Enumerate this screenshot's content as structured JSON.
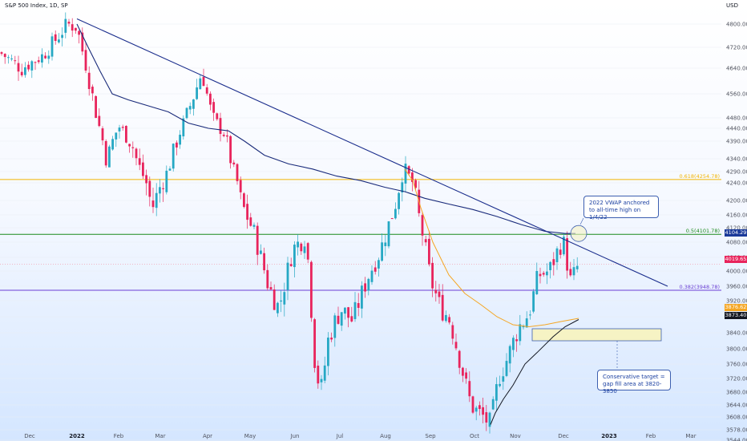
{
  "header": {
    "symbol": "S&P 500 Index, 1D, SP",
    "currency": "USD"
  },
  "chart_data": {
    "type": "candlestick",
    "instrument": "S&P 500 Index",
    "interval": "1D",
    "ylim": [
      3530,
      4830
    ],
    "y_ticks": [
      4800,
      4720,
      4640,
      4560,
      4480,
      4440,
      4390,
      4340,
      4290,
      4240,
      4200,
      4160,
      4120,
      4080,
      4040,
      4000,
      3960,
      3920,
      3880,
      3840,
      3800,
      3760,
      3720,
      3680,
      3644,
      3608,
      3578,
      3544
    ],
    "x_ticks": [
      "Dec",
      "2022",
      "Feb",
      "Mar",
      "Apr",
      "May",
      "Jun",
      "Jul",
      "Aug",
      "Sep",
      "Oct",
      "Nov",
      "Dec",
      "2023",
      "Feb",
      "Mar"
    ],
    "x_ticks_bold": [
      "2022",
      "2023"
    ],
    "key_closes": [
      {
        "date": "Dec 2021",
        "close": 4700
      },
      {
        "date": "2022-01-03",
        "close": 4796
      },
      {
        "date": "Jan 2022 low",
        "close": 4326
      },
      {
        "date": "Feb 2022",
        "close": 4384
      },
      {
        "date": "Mar 2022 low",
        "close": 4170
      },
      {
        "date": "Mar 2022 high",
        "close": 4631
      },
      {
        "date": "Apr 2022",
        "close": 4400
      },
      {
        "date": "May 2022 low",
        "close": 3900
      },
      {
        "date": "Jun 2022 low",
        "close": 3666
      },
      {
        "date": "Jul 2022",
        "close": 3960
      },
      {
        "date": "Aug 2022 high",
        "close": 4305
      },
      {
        "date": "Sep 2022",
        "close": 3790
      },
      {
        "date": "Oct 2022 low",
        "close": 3583
      },
      {
        "date": "Nov 2022",
        "close": 3990
      },
      {
        "date": "Dec 2022 high",
        "close": 4080
      },
      {
        "date": "Dec 2022 last",
        "close": 4019.65
      }
    ],
    "levels": [
      {
        "label": "0.5(4101.78)",
        "value": 4101.78,
        "color": "#1b8a1b"
      },
      {
        "label": "0.382(3948.78)",
        "value": 3948.78,
        "color": "#6a3fd4"
      },
      {
        "label": "0.618(4254.78)",
        "value": 4254.78,
        "color": "#f2b400"
      }
    ],
    "trendline": {
      "start": {
        "date": "2022-01-04",
        "value": 4818
      },
      "end": {
        "date": "Feb 2023",
        "value": 3960
      }
    },
    "vwap_anchored": "2022 VWAP anchored to all-time high on 1/4/22",
    "price_tags": [
      {
        "value": "4104.29",
        "color": "#1a3a9a"
      },
      {
        "value": "4019.65",
        "color": "#e8245c"
      },
      {
        "value": "3876.62",
        "color": "#f5a623"
      },
      {
        "value": "3873.40",
        "color": "#131722"
      }
    ],
    "target_zone": [
      3820,
      3850
    ],
    "annotations": [
      "2022 VWAP anchored to all-time high on 1/4/22",
      "Conservative target = gap fill area at 3820-3850"
    ],
    "colors": {
      "up": "#26a8c4",
      "down": "#e8245c",
      "trend": "#1a2d8c",
      "vwap": "#1a2b7a",
      "vwap_orange": "#f5a623",
      "vwap_black": "#131722"
    }
  }
}
